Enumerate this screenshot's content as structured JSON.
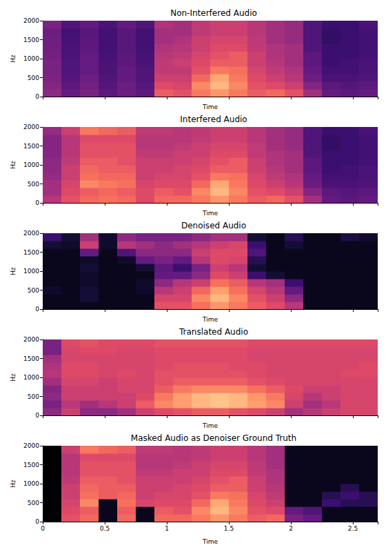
{
  "chart_data": [
    {
      "type": "heatmap",
      "title": "Non-Interfered Audio",
      "xlabel": "Time",
      "ylabel": "Hz",
      "xlim": [
        0,
        2.7
      ],
      "ylim": [
        0,
        2000
      ],
      "xticks": [
        0,
        0.5,
        1,
        1.5,
        2,
        2.5
      ],
      "yticks": [
        0,
        500,
        1000,
        1500,
        2000
      ],
      "tick_labels": "y",
      "color_range": [
        0,
        100
      ],
      "x_edges": [
        0,
        0.15,
        0.3,
        0.45,
        0.6,
        0.75,
        0.9,
        1.05,
        1.2,
        1.35,
        1.5,
        1.65,
        1.8,
        1.95,
        2.1,
        2.25,
        2.4,
        2.55,
        2.7
      ],
      "y_edges": [
        0,
        200,
        400,
        600,
        800,
        1000,
        1200,
        1400,
        1600,
        1800,
        2000
      ],
      "values": [
        [
          40,
          38,
          36,
          35,
          35,
          34,
          33,
          33,
          32,
          35
        ],
        [
          30,
          28,
          26,
          25,
          25,
          24,
          24,
          23,
          22,
          25
        ],
        [
          35,
          34,
          32,
          30,
          30,
          30,
          28,
          28,
          27,
          30
        ],
        [
          28,
          26,
          25,
          24,
          24,
          23,
          22,
          22,
          22,
          24
        ],
        [
          32,
          32,
          30,
          30,
          28,
          28,
          27,
          27,
          27,
          30
        ],
        [
          28,
          27,
          25,
          25,
          24,
          23,
          22,
          22,
          22,
          25
        ],
        [
          65,
          60,
          55,
          52,
          52,
          50,
          48,
          45,
          45,
          48
        ],
        [
          62,
          58,
          55,
          52,
          55,
          52,
          50,
          48,
          45,
          45
        ],
        [
          72,
          75,
          68,
          62,
          60,
          58,
          55,
          55,
          52,
          52
        ],
        [
          78,
          85,
          82,
          72,
          65,
          62,
          60,
          58,
          55,
          55
        ],
        [
          72,
          75,
          72,
          70,
          65,
          65,
          60,
          58,
          55,
          55
        ],
        [
          65,
          62,
          60,
          58,
          55,
          55,
          52,
          52,
          50,
          50
        ],
        [
          68,
          60,
          55,
          52,
          50,
          48,
          48,
          45,
          45,
          45
        ],
        [
          62,
          55,
          50,
          48,
          45,
          45,
          45,
          42,
          42,
          42
        ],
        [
          45,
          38,
          32,
          30,
          28,
          28,
          25,
          25,
          25,
          25
        ],
        [
          30,
          28,
          24,
          22,
          20,
          20,
          20,
          18,
          18,
          20
        ],
        [
          28,
          26,
          24,
          22,
          22,
          20,
          20,
          20,
          20,
          20
        ],
        [
          30,
          28,
          25,
          24,
          24,
          22,
          22,
          22,
          22,
          24
        ]
      ]
    },
    {
      "type": "heatmap",
      "title": "Interfered Audio",
      "xlabel": "Time",
      "ylabel": "Hz",
      "xlim": [
        0,
        2.7
      ],
      "ylim": [
        0,
        2000
      ],
      "xticks": [
        0,
        0.5,
        1,
        1.5,
        2,
        2.5
      ],
      "yticks": [
        0,
        500,
        1000,
        1500,
        2000
      ],
      "tick_labels": "y",
      "color_range": [
        0,
        100
      ],
      "x_edges": [
        0,
        0.15,
        0.3,
        0.45,
        0.6,
        0.75,
        0.9,
        1.05,
        1.2,
        1.35,
        1.5,
        1.65,
        1.8,
        1.95,
        2.1,
        2.25,
        2.4,
        2.55,
        2.7
      ],
      "y_edges": [
        0,
        200,
        400,
        600,
        800,
        1000,
        1200,
        1400,
        1600,
        1800,
        2000
      ],
      "values": [
        [
          50,
          45,
          45,
          42,
          40,
          40,
          38,
          38,
          38,
          42
        ],
        [
          62,
          60,
          58,
          55,
          55,
          52,
          50,
          50,
          50,
          55
        ],
        [
          68,
          65,
          75,
          70,
          68,
          65,
          62,
          62,
          60,
          72
        ],
        [
          70,
          68,
          72,
          68,
          65,
          65,
          62,
          62,
          60,
          68
        ],
        [
          68,
          65,
          70,
          68,
          65,
          62,
          62,
          62,
          60,
          65
        ],
        [
          60,
          60,
          58,
          55,
          55,
          55,
          52,
          50,
          50,
          52
        ],
        [
          68,
          65,
          60,
          58,
          55,
          55,
          52,
          50,
          50,
          52
        ],
        [
          68,
          62,
          60,
          58,
          58,
          55,
          55,
          52,
          50,
          50
        ],
        [
          72,
          75,
          68,
          62,
          60,
          58,
          55,
          55,
          52,
          52
        ],
        [
          78,
          85,
          82,
          72,
          65,
          62,
          60,
          58,
          55,
          55
        ],
        [
          72,
          75,
          72,
          70,
          65,
          65,
          60,
          58,
          55,
          55
        ],
        [
          65,
          62,
          60,
          58,
          55,
          55,
          52,
          52,
          50,
          50
        ],
        [
          68,
          60,
          55,
          52,
          50,
          48,
          48,
          45,
          45,
          45
        ],
        [
          62,
          55,
          50,
          48,
          45,
          45,
          45,
          42,
          42,
          42
        ],
        [
          45,
          38,
          32,
          30,
          28,
          28,
          25,
          25,
          25,
          25
        ],
        [
          30,
          28,
          24,
          22,
          20,
          20,
          20,
          18,
          18,
          20
        ],
        [
          28,
          26,
          24,
          22,
          22,
          20,
          20,
          20,
          20,
          20
        ],
        [
          30,
          28,
          25,
          24,
          24,
          22,
          22,
          22,
          22,
          24
        ]
      ]
    },
    {
      "type": "heatmap",
      "title": "Denoised Audio",
      "xlabel": "Time",
      "ylabel": "Hz",
      "xlim": [
        0,
        2.7
      ],
      "ylim": [
        0,
        2000
      ],
      "xticks": [
        0,
        0.5,
        1,
        1.5,
        2,
        2.5
      ],
      "yticks": [
        0,
        500,
        1000,
        1500,
        2000
      ],
      "tick_labels": "y",
      "color_range": [
        0,
        100
      ],
      "x_edges": [
        0,
        0.15,
        0.3,
        0.45,
        0.6,
        0.75,
        0.9,
        1.05,
        1.2,
        1.35,
        1.5,
        1.65,
        1.8,
        1.95,
        2.1,
        2.25,
        2.4,
        2.55,
        2.7
      ],
      "y_edges": [
        0,
        200,
        400,
        600,
        800,
        1000,
        1200,
        1400,
        1600,
        1800,
        2000
      ],
      "values": [
        [
          5,
          5,
          8,
          5,
          5,
          5,
          5,
          5,
          10,
          20
        ],
        [
          5,
          5,
          5,
          5,
          5,
          5,
          5,
          5,
          8,
          10
        ],
        [
          5,
          10,
          10,
          8,
          8,
          10,
          8,
          30,
          55,
          45
        ],
        [
          5,
          5,
          5,
          5,
          5,
          5,
          5,
          5,
          8,
          8
        ],
        [
          5,
          5,
          5,
          5,
          5,
          5,
          8,
          25,
          50,
          40
        ],
        [
          5,
          5,
          8,
          8,
          5,
          10,
          30,
          40,
          45,
          35
        ],
        [
          62,
          58,
          50,
          40,
          30,
          28,
          35,
          40,
          40,
          35
        ],
        [
          62,
          58,
          55,
          50,
          30,
          20,
          30,
          40,
          45,
          35
        ],
        [
          70,
          75,
          68,
          55,
          40,
          35,
          50,
          55,
          50,
          40
        ],
        [
          78,
          85,
          80,
          70,
          60,
          55,
          60,
          60,
          55,
          45
        ],
        [
          72,
          75,
          70,
          65,
          55,
          50,
          58,
          60,
          58,
          45
        ],
        [
          65,
          62,
          58,
          50,
          20,
          10,
          15,
          25,
          20,
          10
        ],
        [
          60,
          55,
          50,
          45,
          10,
          5,
          5,
          5,
          5,
          5
        ],
        [
          50,
          40,
          30,
          20,
          5,
          5,
          5,
          5,
          10,
          15
        ],
        [
          5,
          5,
          5,
          5,
          5,
          5,
          5,
          5,
          5,
          5
        ],
        [
          5,
          5,
          5,
          5,
          5,
          5,
          5,
          5,
          5,
          5
        ],
        [
          5,
          5,
          5,
          5,
          5,
          5,
          5,
          5,
          5,
          12
        ],
        [
          5,
          5,
          5,
          5,
          5,
          5,
          5,
          5,
          5,
          8
        ]
      ]
    },
    {
      "type": "heatmap",
      "title": "Translated Audio",
      "xlabel": "Time",
      "ylabel": "Hz",
      "xlim": [
        0,
        2.7
      ],
      "ylim": [
        0,
        2000
      ],
      "xticks": [
        0,
        0.5,
        1,
        1.5,
        2,
        2.5
      ],
      "yticks": [
        0,
        500,
        1000,
        1500,
        2000
      ],
      "tick_labels": "y",
      "color_range": [
        0,
        100
      ],
      "x_edges": [
        0,
        0.15,
        0.3,
        0.45,
        0.6,
        0.75,
        0.9,
        1.05,
        1.2,
        1.35,
        1.5,
        1.65,
        1.8,
        1.95,
        2.1,
        2.25,
        2.4,
        2.55,
        2.7
      ],
      "y_edges": [
        0,
        200,
        400,
        600,
        800,
        1000,
        1200,
        1400,
        1600,
        1800,
        2000
      ],
      "values": [
        [
          40,
          35,
          40,
          38,
          45,
          50,
          48,
          45,
          35,
          35
        ],
        [
          55,
          50,
          55,
          55,
          58,
          60,
          60,
          58,
          58,
          60
        ],
        [
          40,
          45,
          55,
          55,
          58,
          60,
          60,
          58,
          60,
          62
        ],
        [
          40,
          50,
          55,
          55,
          55,
          58,
          58,
          58,
          60,
          60
        ],
        [
          45,
          55,
          55,
          58,
          58,
          60,
          58,
          58,
          58,
          60
        ],
        [
          55,
          65,
          60,
          58,
          58,
          58,
          58,
          58,
          58,
          60
        ],
        [
          60,
          75,
          72,
          65,
          62,
          62,
          60,
          60,
          60,
          62
        ],
        [
          62,
          80,
          80,
          72,
          65,
          62,
          62,
          60,
          60,
          62
        ],
        [
          65,
          85,
          85,
          75,
          65,
          62,
          62,
          60,
          60,
          62
        ],
        [
          65,
          88,
          87,
          75,
          65,
          62,
          62,
          60,
          60,
          62
        ],
        [
          62,
          85,
          85,
          75,
          65,
          62,
          60,
          60,
          60,
          62
        ],
        [
          60,
          80,
          78,
          70,
          62,
          60,
          60,
          58,
          58,
          60
        ],
        [
          55,
          75,
          72,
          65,
          60,
          58,
          58,
          58,
          58,
          60
        ],
        [
          45,
          55,
          58,
          60,
          58,
          58,
          58,
          58,
          58,
          60
        ],
        [
          50,
          45,
          50,
          55,
          58,
          58,
          58,
          58,
          58,
          60
        ],
        [
          55,
          50,
          55,
          55,
          58,
          58,
          58,
          58,
          58,
          60
        ],
        [
          58,
          58,
          58,
          58,
          58,
          60,
          58,
          58,
          58,
          60
        ],
        [
          58,
          58,
          58,
          58,
          58,
          60,
          60,
          58,
          58,
          60
        ]
      ]
    },
    {
      "type": "heatmap",
      "title": "Masked Audio as Denoiser Ground Truth",
      "xlabel": "Time",
      "ylabel": "Hz",
      "xlim": [
        0,
        2.7
      ],
      "ylim": [
        0,
        2000
      ],
      "xticks": [
        0,
        0.5,
        1,
        1.5,
        2,
        2.5
      ],
      "yticks": [
        0,
        500,
        1000,
        1500,
        2000
      ],
      "color_range": [
        0,
        100
      ],
      "x_edges": [
        0,
        0.15,
        0.3,
        0.45,
        0.6,
        0.75,
        0.9,
        1.05,
        1.2,
        1.35,
        1.5,
        1.65,
        1.8,
        1.95,
        2.1,
        2.25,
        2.4,
        2.55,
        2.7
      ],
      "y_edges": [
        0,
        200,
        400,
        600,
        800,
        1000,
        1200,
        1400,
        1600,
        1800,
        2000
      ],
      "values": [
        [
          0,
          0,
          0,
          0,
          0,
          0,
          0,
          0,
          0,
          0
        ],
        [
          62,
          60,
          58,
          55,
          55,
          52,
          50,
          50,
          50,
          55
        ],
        [
          68,
          65,
          75,
          70,
          68,
          65,
          62,
          62,
          60,
          72
        ],
        [
          5,
          5,
          5,
          65,
          65,
          65,
          62,
          62,
          60,
          68
        ],
        [
          68,
          65,
          70,
          68,
          65,
          62,
          62,
          62,
          60,
          65
        ],
        [
          5,
          5,
          58,
          55,
          55,
          55,
          52,
          50,
          50,
          52
        ],
        [
          68,
          65,
          60,
          58,
          55,
          55,
          52,
          50,
          50,
          52
        ],
        [
          68,
          62,
          60,
          58,
          58,
          55,
          55,
          52,
          50,
          50
        ],
        [
          72,
          75,
          68,
          62,
          60,
          58,
          55,
          55,
          52,
          52
        ],
        [
          78,
          85,
          82,
          72,
          65,
          62,
          60,
          58,
          55,
          55
        ],
        [
          72,
          75,
          72,
          70,
          65,
          65,
          60,
          58,
          55,
          55
        ],
        [
          65,
          62,
          60,
          58,
          55,
          55,
          52,
          52,
          50,
          50
        ],
        [
          68,
          60,
          55,
          52,
          50,
          48,
          48,
          45,
          45,
          45
        ],
        [
          35,
          30,
          5,
          5,
          5,
          5,
          5,
          5,
          5,
          5
        ],
        [
          30,
          25,
          5,
          5,
          5,
          5,
          5,
          5,
          5,
          5
        ],
        [
          5,
          5,
          20,
          15,
          5,
          5,
          5,
          5,
          5,
          5
        ],
        [
          5,
          5,
          15,
          20,
          15,
          5,
          5,
          5,
          5,
          5
        ],
        [
          5,
          5,
          15,
          15,
          5,
          5,
          5,
          5,
          5,
          5
        ]
      ]
    }
  ]
}
